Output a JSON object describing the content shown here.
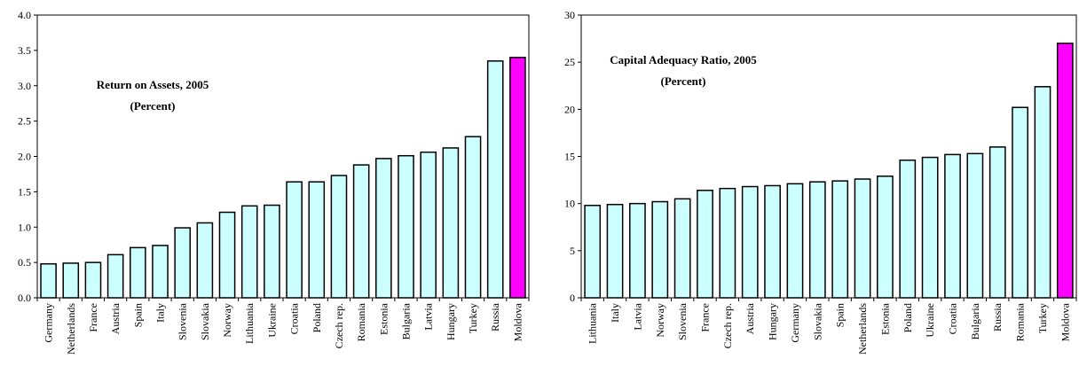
{
  "chart_data": [
    {
      "type": "bar",
      "title": "Return on Assets, 2005",
      "subtitle": "(Percent)",
      "categories": [
        "Germany",
        "Netherlands",
        "France",
        "Austria",
        "Spain",
        "Italy",
        "Slovenia",
        "Slovakia",
        "Norway",
        "Lithuania",
        "Ukraine",
        "Croatia",
        "Poland",
        "Czech rep.",
        "Romania",
        "Estonia",
        "Bulgaria",
        "Latvia",
        "Hungary",
        "Turkey",
        "Russia",
        "Moldova"
      ],
      "values": [
        0.48,
        0.49,
        0.5,
        0.61,
        0.71,
        0.74,
        0.99,
        1.06,
        1.21,
        1.3,
        1.31,
        1.64,
        1.64,
        1.73,
        1.88,
        1.97,
        2.01,
        2.06,
        2.12,
        2.28,
        3.35,
        3.4
      ],
      "colors": [
        "#ccffff",
        "#ccffff",
        "#ccffff",
        "#ccffff",
        "#ccffff",
        "#ccffff",
        "#ccffff",
        "#ccffff",
        "#ccffff",
        "#ccffff",
        "#ccffff",
        "#ccffff",
        "#ccffff",
        "#ccffff",
        "#ccffff",
        "#ccffff",
        "#ccffff",
        "#ccffff",
        "#ccffff",
        "#ccffff",
        "#ccffff",
        "#ff00ff"
      ],
      "ylim": [
        0,
        4
      ],
      "yticks": [
        {
          "value": 0,
          "label": "0.0"
        },
        0.5,
        {
          "value": 1,
          "label": "1.0"
        },
        1.5,
        {
          "value": 2,
          "label": "2.0"
        },
        2.5,
        {
          "value": 3,
          "label": "3.0"
        },
        3.5,
        {
          "value": 4,
          "label": "4.0"
        }
      ],
      "grid": false
    },
    {
      "type": "bar",
      "title": "Capital Adequacy Ratio, 2005",
      "subtitle": "(Percent)",
      "categories": [
        "Lithuania",
        "Italy",
        "Latvia",
        "Norway",
        "Slovenia",
        "France",
        "Czech rep.",
        "Austria",
        "Hungary",
        "Germany",
        "Slovakia",
        "Spain",
        "Netherlands",
        "Estonia",
        "Poland",
        "Ukraine",
        "Croatia",
        "Bulgaria",
        "Russia",
        "Romania",
        "Turkey",
        "Moldova"
      ],
      "values": [
        9.8,
        9.9,
        10.0,
        10.2,
        10.5,
        11.4,
        11.6,
        11.8,
        11.9,
        12.1,
        12.3,
        12.4,
        12.6,
        12.9,
        14.6,
        14.9,
        15.2,
        15.3,
        16.0,
        20.2,
        22.4,
        27.0
      ],
      "colors": [
        "#ccffff",
        "#ccffff",
        "#ccffff",
        "#ccffff",
        "#ccffff",
        "#ccffff",
        "#ccffff",
        "#ccffff",
        "#ccffff",
        "#ccffff",
        "#ccffff",
        "#ccffff",
        "#ccffff",
        "#ccffff",
        "#ccffff",
        "#ccffff",
        "#ccffff",
        "#ccffff",
        "#ccffff",
        "#ccffff",
        "#ccffff",
        "#ff00ff"
      ],
      "ylim": [
        0,
        30
      ],
      "yticks": [
        0,
        5,
        10,
        15,
        20,
        25,
        30
      ],
      "grid": false
    }
  ]
}
